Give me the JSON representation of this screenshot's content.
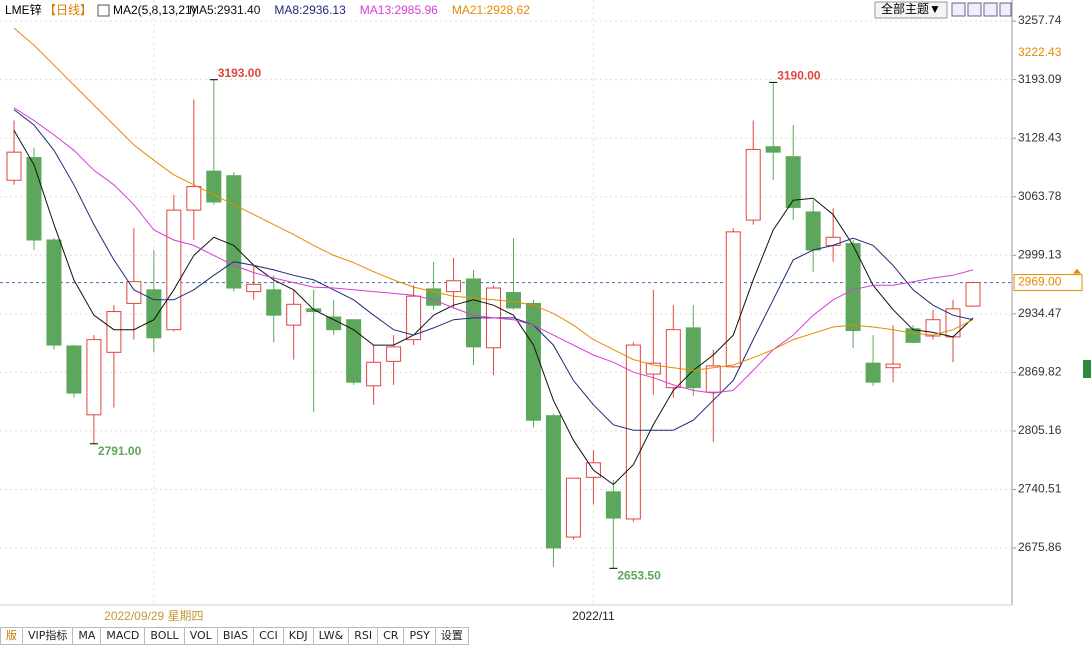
{
  "header": {
    "symbol": "LME锌",
    "period": "【日线】",
    "indicator": "MA2(5,8,13,21)",
    "theme_button": "全部主题▼"
  },
  "chart_data": {
    "type": "candlestick",
    "categories": [
      null,
      null,
      null,
      null,
      null,
      null,
      null,
      "2022/09/29 星期四",
      null,
      null,
      null,
      null,
      null,
      null,
      null,
      null,
      null,
      null,
      null,
      null,
      null,
      null,
      null,
      null,
      null,
      null,
      null,
      null,
      null,
      "2022/11",
      null,
      null,
      null,
      null,
      null,
      null,
      null,
      null,
      null,
      null,
      null,
      null,
      null,
      null,
      null,
      null,
      null,
      null,
      null
    ],
    "open": [
      3082,
      3107,
      3016,
      2899,
      2823,
      2892,
      2946,
      2961,
      2917,
      3049,
      3092,
      3087,
      2959,
      2961,
      2922,
      2940,
      2931,
      2928,
      2855,
      2882,
      2906,
      2962,
      2959,
      2973,
      2897,
      2958,
      2946,
      2822,
      2688,
      2754,
      2738,
      2708,
      2868,
      2853,
      2919,
      2848,
      2876,
      3038,
      3119,
      3108,
      3047,
      3010,
      3012,
      2880,
      2875,
      2918,
      2910,
      2909,
      2943
    ],
    "high": [
      3148,
      3118,
      3018,
      2900,
      2911,
      2944,
      3029,
      3005,
      3066,
      3171,
      3193,
      3091,
      2988,
      2977,
      2961,
      2961,
      2950,
      2928,
      2900,
      2911,
      2966,
      2992,
      2996,
      2983,
      2966,
      3018,
      2950,
      2824,
      2753,
      2784,
      2751,
      2903,
      2961,
      2944,
      2944,
      2895,
      3029,
      3148,
      3190,
      3143,
      3060,
      3051,
      3016,
      2911,
      2922,
      2922,
      2939,
      2950,
      2970
    ],
    "low": [
      3077,
      3005,
      2895,
      2842,
      2791,
      2831,
      2906,
      2892,
      2915,
      3016,
      3055,
      2959,
      2950,
      2903,
      2884,
      2826,
      2911,
      2856,
      2834,
      2856,
      2900,
      2939,
      2941,
      2878,
      2867,
      2939,
      2809,
      2655,
      2685,
      2724,
      2653.5,
      2705,
      2845,
      2842,
      2844,
      2793,
      2875,
      3033,
      3082,
      3038,
      2981,
      2992,
      2897,
      2855,
      2859,
      2902,
      2906,
      2881,
      2942
    ],
    "close": [
      3113,
      3016,
      2900,
      2847,
      2906,
      2937,
      2970,
      2908,
      3049,
      3075,
      3058,
      2963,
      2967,
      2933,
      2945,
      2937,
      2917,
      2859,
      2881,
      2898,
      2954,
      2944,
      2971,
      2898,
      2963,
      2941,
      2817,
      2676,
      2753,
      2770,
      2709,
      2900,
      2880,
      2917,
      2853,
      2877,
      3025,
      3116,
      3113,
      3052,
      3005,
      3019,
      2916,
      2859,
      2879,
      2903,
      2928,
      2940,
      2969
    ],
    "up_color": "#e0463c",
    "down_color": "#5ca75c",
    "series": [
      {
        "name": "MA5:2931.40",
        "color": "#111111",
        "values": [
          3137,
          3099,
          3033,
          2972,
          2933,
          2917,
          2917,
          2928,
          2961,
          2999,
          3019,
          3010,
          2988,
          2972,
          2961,
          2939,
          2928,
          2917,
          2900,
          2900,
          2911,
          2933,
          2944,
          2950,
          2944,
          2933,
          2900,
          2839,
          2795,
          2762,
          2746,
          2768,
          2812,
          2850,
          2872,
          2889,
          2911,
          2972,
          3027,
          3060,
          3062,
          3044,
          3010,
          2966,
          2939,
          2917,
          2914,
          2909,
          2930
        ]
      },
      {
        "name": "MA8:2936.13",
        "color": "#1f2a7a",
        "values": [
          3160,
          3143,
          3115,
          3077,
          3033,
          2994,
          2961,
          2950,
          2950,
          2961,
          2977,
          2992,
          2988,
          2983,
          2977,
          2972,
          2961,
          2950,
          2933,
          2917,
          2911,
          2919,
          2928,
          2930,
          2930,
          2930,
          2922,
          2900,
          2861,
          2834,
          2812,
          2806,
          2806,
          2806,
          2817,
          2839,
          2861,
          2906,
          2950,
          2994,
          3005,
          3010,
          3018,
          3010,
          2988,
          2961,
          2944,
          2933,
          2928
        ]
      },
      {
        "name": "MA13:2985.96",
        "color": "#d93bd9",
        "values": [
          3162,
          3148,
          3132,
          3115,
          3093,
          3077,
          3055,
          3027,
          3016,
          3010,
          2999,
          2988,
          2980,
          2974,
          2969,
          2964,
          2963,
          2961,
          2959,
          2957,
          2955,
          2950,
          2941,
          2933,
          2930,
          2928,
          2922,
          2911,
          2900,
          2889,
          2881,
          2870,
          2864,
          2856,
          2850,
          2847,
          2850,
          2872,
          2895,
          2911,
          2933,
          2950,
          2961,
          2966,
          2966,
          2970,
          2974,
          2977,
          2983
        ]
      },
      {
        "name": "MA21:2928.62",
        "color": "#e68a00",
        "values": [
          3250,
          3231,
          3209,
          3187,
          3165,
          3143,
          3121,
          3104,
          3088,
          3077,
          3066,
          3055,
          3044,
          3033,
          3022,
          3010,
          2999,
          2991,
          2981,
          2972,
          2964,
          2959,
          2954,
          2952,
          2950,
          2948,
          2944,
          2935,
          2922,
          2906,
          2895,
          2884,
          2878,
          2875,
          2872,
          2875,
          2878,
          2886,
          2895,
          2906,
          2913,
          2920,
          2922,
          2920,
          2917,
          2913,
          2911,
          2917,
          2928
        ]
      }
    ],
    "ylim": [
      2613,
      3281
    ],
    "yticks": [
      3257.74,
      3193.09,
      3128.43,
      3063.78,
      2999.13,
      2934.47,
      2869.82,
      2805.16,
      2740.51,
      2675.86
    ],
    "y_marker": 3222.43,
    "current_price": {
      "value": 2969,
      "label": "2969.00",
      "color": "#3a6fb0"
    },
    "annotations": [
      {
        "index": 10,
        "value": 3193,
        "label": "3193.00",
        "color": "#e0463c"
      },
      {
        "index": 4,
        "value": 2791,
        "label": "2791.00",
        "color": "#5ca75c"
      },
      {
        "index": 30,
        "value": 2653.5,
        "label": "2653.50",
        "color": "#5ca75c"
      },
      {
        "index": 38,
        "value": 3190,
        "label": "3190.00",
        "color": "#e0463c"
      }
    ],
    "grid": true
  },
  "tabs": [
    "版",
    "VIP指标",
    "MA",
    "MACD",
    "BOLL",
    "VOL",
    "BIAS",
    "CCI",
    "KDJ",
    "LW&",
    "RSI",
    "CR",
    "PSY",
    "设置"
  ]
}
